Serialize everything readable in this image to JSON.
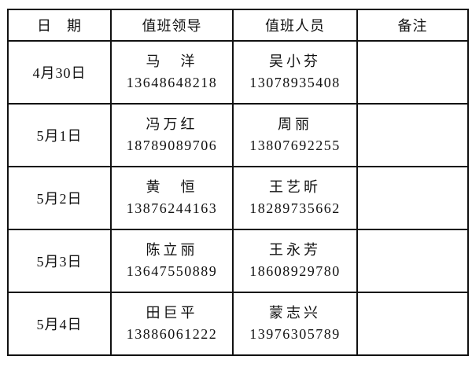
{
  "headers": [
    "日　期",
    "值班领导",
    "值班人员",
    "备注"
  ],
  "rows": [
    {
      "date": "4月30日",
      "leader": {
        "name": "马　洋",
        "phone": "13648648218"
      },
      "staff": {
        "name": "吴小芬",
        "phone": "13078935408"
      },
      "note": ""
    },
    {
      "date": "5月1日",
      "leader": {
        "name": "冯万红",
        "phone": "18789089706"
      },
      "staff": {
        "name": "周丽",
        "phone": "13807692255"
      },
      "note": ""
    },
    {
      "date": "5月2日",
      "leader": {
        "name": "黄　恒",
        "phone": "13876244163"
      },
      "staff": {
        "name": "王艺昕",
        "phone": "18289735662"
      },
      "note": ""
    },
    {
      "date": "5月3日",
      "leader": {
        "name": "陈立丽",
        "phone": "13647550889"
      },
      "staff": {
        "name": "王永芳",
        "phone": "18608929780"
      },
      "note": ""
    },
    {
      "date": "5月4日",
      "leader": {
        "name": "田巨平",
        "phone": "13886061222"
      },
      "staff": {
        "name": "蒙志兴",
        "phone": "13976305789"
      },
      "note": ""
    }
  ]
}
